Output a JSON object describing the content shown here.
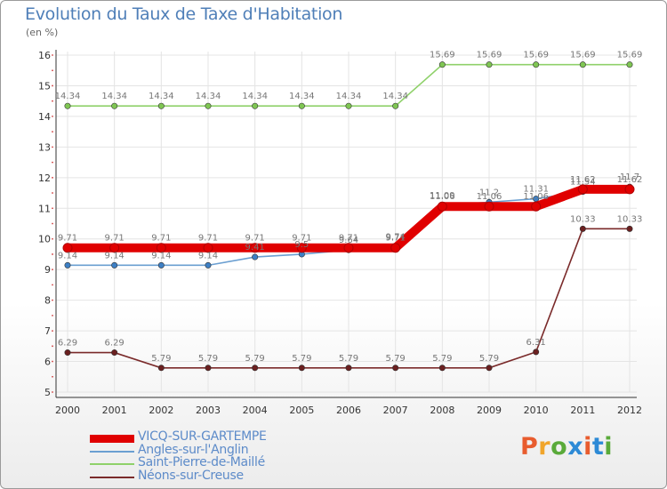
{
  "title": "Evolution du Taux de Taxe d'Habitation",
  "unit_label": "(en %)",
  "brand": "Proxiti",
  "brand_colors": [
    "#e85c2e",
    "#f1a52b",
    "#5aaa3a",
    "#2d8ad6",
    "#e85c2e",
    "#2d8ad6",
    "#5aaa3a"
  ],
  "chart_data": {
    "type": "line",
    "title": "Evolution du Taux de Taxe d'Habitation",
    "ylabel": "(en %)",
    "xlabel": "",
    "x": [
      "2000",
      "2001",
      "2002",
      "2003",
      "2004",
      "2005",
      "2006",
      "2007",
      "2008",
      "2009",
      "2010",
      "2011",
      "2012"
    ],
    "ylim": [
      5,
      16
    ],
    "yticks": [
      "5",
      "6",
      "7",
      "8",
      "9",
      "10",
      "11",
      "12",
      "13",
      "14",
      "15",
      "16"
    ],
    "legend_position": "bottom-left",
    "series": [
      {
        "name": "VICQ-SUR-GARTEMPE",
        "color": "#e00000",
        "values": [
          9.71,
          9.71,
          9.71,
          9.71,
          9.71,
          9.71,
          9.71,
          9.71,
          11.06,
          11.06,
          11.06,
          11.62,
          11.62
        ],
        "labels": [
          "9.71",
          "9.71",
          "9.71",
          "9.71",
          "9.71",
          "9.71",
          "9.71",
          "9.71",
          "11.06",
          "11.06",
          "11.06",
          "11.62",
          "11.62"
        ]
      },
      {
        "name": "Angles-sur-l'Anglin",
        "color": "#6b9fd1",
        "values": [
          9.14,
          9.14,
          9.14,
          9.14,
          9.41,
          9.5,
          9.64,
          9.74,
          11.09,
          11.2,
          11.31,
          11.54,
          11.7
        ],
        "labels": [
          "9.14",
          "9.14",
          "9.14",
          "9.14",
          "9.41",
          "9.5",
          "9.64",
          "9.74",
          "11.09",
          "11.2",
          "11.31",
          "11.54",
          "11.7"
        ]
      },
      {
        "name": "Saint-Pierre-de-Maillé",
        "color": "#8fd16a",
        "values": [
          14.34,
          14.34,
          14.34,
          14.34,
          14.34,
          14.34,
          14.34,
          14.34,
          15.69,
          15.69,
          15.69,
          15.69,
          15.69
        ],
        "labels": [
          "14.34",
          "14.34",
          "14.34",
          "14.34",
          "14.34",
          "14.34",
          "14.34",
          "14.34",
          "15.69",
          "15.69",
          "15.69",
          "15.69",
          "15.69"
        ]
      },
      {
        "name": "Néons-sur-Creuse",
        "color": "#7a2a2a",
        "values": [
          6.29,
          6.29,
          5.79,
          5.79,
          5.79,
          5.79,
          5.79,
          5.79,
          5.79,
          5.79,
          6.31,
          10.33,
          10.33
        ],
        "labels": [
          "6.29",
          "6.29",
          "5.79",
          "5.79",
          "5.79",
          "5.79",
          "5.79",
          "5.79",
          "5.79",
          "5.79",
          "6.31",
          "10.33",
          "10.33"
        ]
      }
    ]
  }
}
